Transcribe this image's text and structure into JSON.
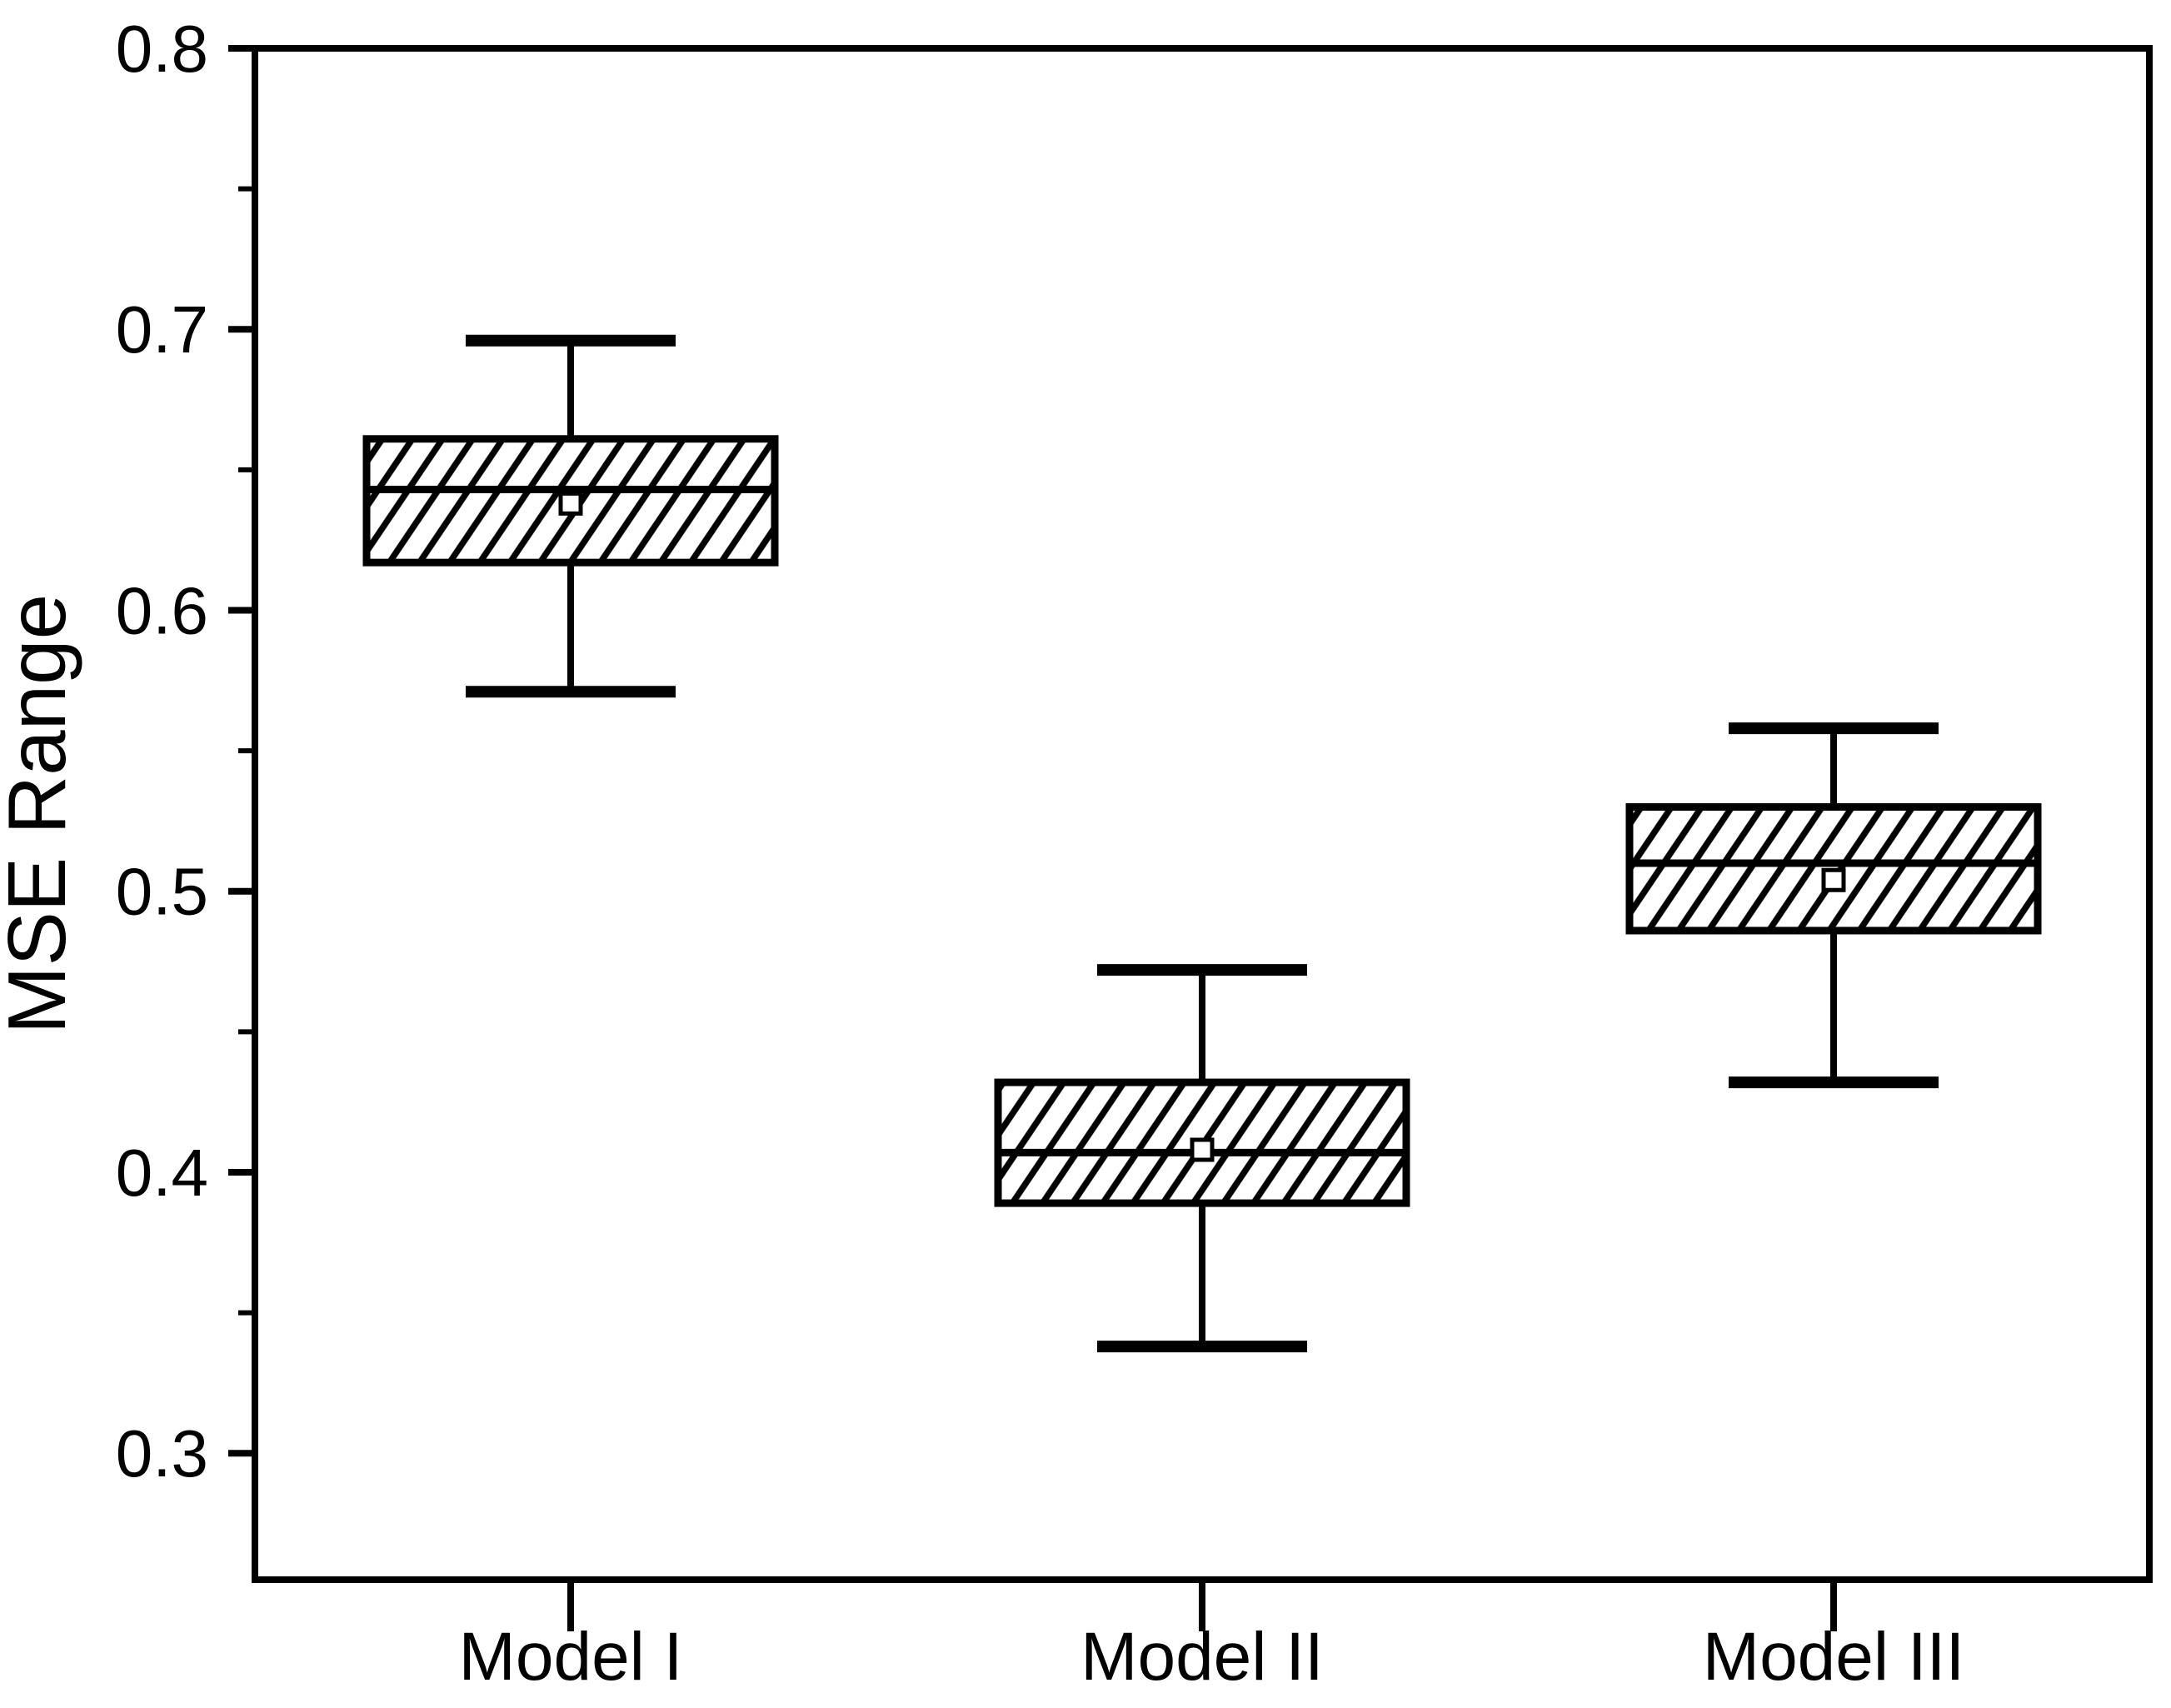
{
  "chart_data": {
    "type": "boxplot",
    "title": "",
    "xlabel": "",
    "ylabel": "MSE Range",
    "categories": [
      "Model I",
      "Model II",
      "Model III"
    ],
    "y_axis": {
      "min": 0.255,
      "max": 0.8,
      "major_ticks": [
        0.8,
        0.7,
        0.6,
        0.5,
        0.4,
        0.3
      ],
      "minor_ticks": [
        0.75,
        0.65,
        0.55,
        0.45,
        0.35
      ],
      "tick_decimals": 1
    },
    "grid": false,
    "legend": false,
    "series": [
      {
        "name": "Model I",
        "whisker_low": 0.571,
        "q1": 0.617,
        "median": 0.643,
        "mean": 0.638,
        "q3": 0.661,
        "whisker_high": 0.696
      },
      {
        "name": "Model II",
        "whisker_low": 0.338,
        "q1": 0.389,
        "median": 0.407,
        "mean": 0.408,
        "q3": 0.432,
        "whisker_high": 0.472
      },
      {
        "name": "Model III",
        "whisker_low": 0.432,
        "q1": 0.486,
        "median": 0.51,
        "mean": 0.504,
        "q3": 0.53,
        "whisker_high": 0.558
      }
    ],
    "style": {
      "stroke_color": "#000000",
      "background_color": "#ffffff",
      "box_fill": "white-with-diagonal-hatch",
      "hatch_angle_deg": 56,
      "mean_marker": "open-square"
    }
  }
}
